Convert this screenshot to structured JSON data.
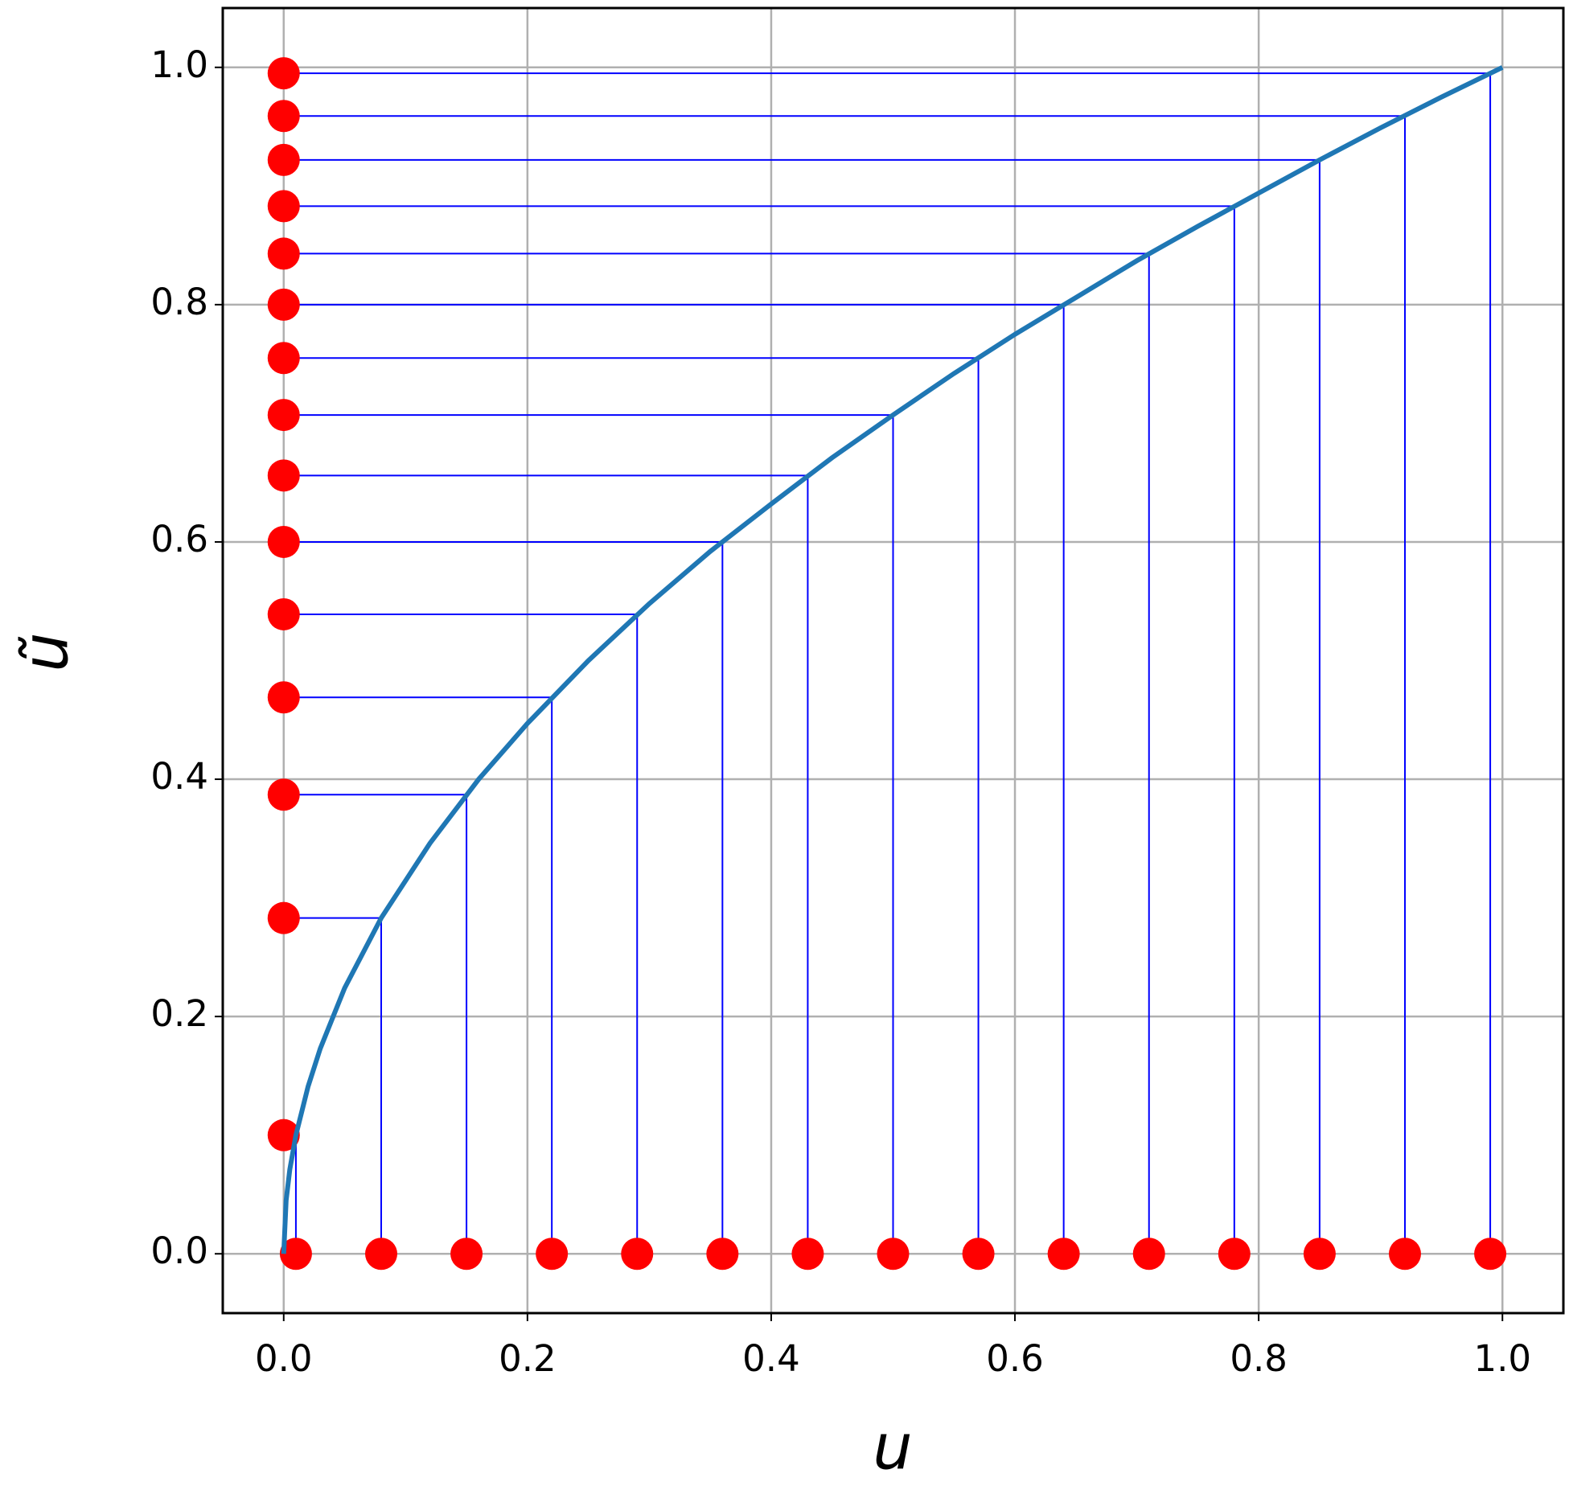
{
  "chart_data": {
    "type": "line",
    "xlabel": "u",
    "ylabel": "ũ",
    "xlim": [
      -0.05,
      1.05
    ],
    "ylim": [
      -0.05,
      1.05
    ],
    "xticks": [
      {
        "value": 0,
        "label": "0.0"
      },
      {
        "value": 0.2,
        "label": "0.2"
      },
      {
        "value": 0.4,
        "label": "0.4"
      },
      {
        "value": 0.6,
        "label": "0.6"
      },
      {
        "value": 0.8,
        "label": "0.8"
      },
      {
        "value": 1,
        "label": "1.0"
      }
    ],
    "yticks": [
      {
        "value": 0,
        "label": "0.0"
      },
      {
        "value": 0.2,
        "label": "0.2"
      },
      {
        "value": 0.4,
        "label": "0.4"
      },
      {
        "value": 0.6,
        "label": "0.6"
      },
      {
        "value": 0.8,
        "label": "0.8"
      },
      {
        "value": 1,
        "label": "1.0"
      }
    ],
    "grid": true,
    "series": [
      {
        "mode": "line",
        "color": "#1f77b4",
        "x": [
          0,
          0.002,
          0.005,
          0.01,
          0.02,
          0.03,
          0.05,
          0.08,
          0.12,
          0.16,
          0.2,
          0.25,
          0.3,
          0.35,
          0.4,
          0.45,
          0.5,
          0.55,
          0.6,
          0.65,
          0.7,
          0.75,
          0.8,
          0.85,
          0.9,
          0.95,
          1.0
        ],
        "y": [
          0,
          0.045,
          0.071,
          0.1,
          0.141,
          0.173,
          0.224,
          0.283,
          0.346,
          0.4,
          0.447,
          0.5,
          0.548,
          0.592,
          0.632,
          0.671,
          0.707,
          0.742,
          0.775,
          0.806,
          0.837,
          0.866,
          0.894,
          0.922,
          0.949,
          0.975,
          1.0
        ]
      },
      {
        "mode": "projection",
        "color": "#ff0000",
        "line_color": "#0000ff",
        "x": [
          0.01,
          0.08,
          0.15,
          0.22,
          0.29,
          0.36,
          0.43,
          0.5,
          0.57,
          0.64,
          0.71,
          0.78,
          0.85,
          0.92,
          0.99
        ],
        "y": [
          0.1,
          0.283,
          0.387,
          0.469,
          0.539,
          0.6,
          0.656,
          0.707,
          0.755,
          0.8,
          0.843,
          0.883,
          0.922,
          0.959,
          0.995
        ]
      }
    ]
  }
}
